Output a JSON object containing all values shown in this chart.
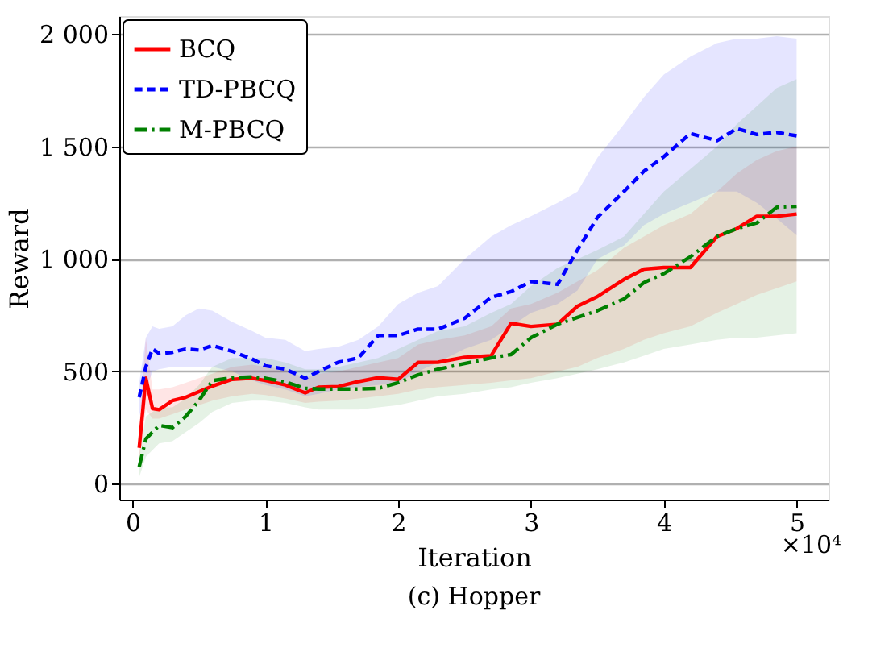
{
  "chart_data": {
    "type": "line",
    "xlabel": "Iteration",
    "ylabel": "Reward",
    "annotations": [
      "×10⁴",
      "(c) Hopper"
    ],
    "x": [
      0.05,
      0.1,
      0.15,
      0.2,
      0.3,
      0.4,
      0.5,
      0.6,
      0.75,
      0.9,
      1.0,
      1.15,
      1.3,
      1.4,
      1.55,
      1.7,
      1.85,
      2.0,
      2.15,
      2.3,
      2.5,
      2.7,
      2.85,
      3.0,
      3.2,
      3.35,
      3.5,
      3.7,
      3.85,
      4.0,
      4.2,
      4.4,
      4.55,
      4.7,
      4.85,
      5.0
    ],
    "series": [
      {
        "name": "BCQ",
        "color": "#ff0000",
        "line_style": "solid",
        "values": [
          160,
          470,
          335,
          330,
          370,
          385,
          410,
          435,
          465,
          470,
          460,
          440,
          405,
          430,
          433,
          455,
          472,
          465,
          540,
          541,
          563,
          570,
          714,
          700,
          710,
          790,
          833,
          909,
          955,
          962,
          962,
          1100,
          1135,
          1190,
          1190,
          1200
        ],
        "lower": [
          100,
          330,
          290,
          290,
          310,
          330,
          350,
          370,
          390,
          400,
          395,
          380,
          360,
          365,
          370,
          380,
          390,
          400,
          420,
          430,
          440,
          450,
          460,
          470,
          500,
          520,
          560,
          600,
          640,
          670,
          700,
          760,
          800,
          840,
          870,
          900
        ],
        "upper": [
          250,
          650,
          420,
          420,
          430,
          450,
          470,
          490,
          520,
          530,
          520,
          510,
          470,
          490,
          500,
          520,
          540,
          560,
          620,
          640,
          660,
          700,
          780,
          800,
          850,
          900,
          950,
          1050,
          1100,
          1150,
          1200,
          1300,
          1380,
          1440,
          1480,
          1500
        ]
      },
      {
        "name": "TD-PBCQ",
        "color": "#0000ff",
        "line_style": "dashed",
        "values": [
          385,
          520,
          600,
          580,
          585,
          600,
          595,
          615,
          590,
          555,
          525,
          510,
          470,
          500,
          541,
          560,
          660,
          660,
          688,
          688,
          736,
          830,
          855,
          900,
          887,
          1040,
          1185,
          1300,
          1390,
          1455,
          1558,
          1526,
          1580,
          1554,
          1563,
          1548
        ],
        "lower": [
          300,
          420,
          500,
          510,
          520,
          520,
          520,
          520,
          500,
          460,
          440,
          420,
          390,
          400,
          420,
          430,
          440,
          450,
          500,
          540,
          600,
          640,
          700,
          760,
          800,
          860,
          1000,
          1060,
          1150,
          1200,
          1250,
          1300,
          1300,
          1250,
          1180,
          1105
        ],
        "upper": [
          450,
          650,
          700,
          690,
          700,
          750,
          780,
          770,
          720,
          680,
          650,
          640,
          590,
          600,
          610,
          640,
          700,
          800,
          850,
          880,
          1000,
          1100,
          1150,
          1190,
          1250,
          1300,
          1450,
          1600,
          1720,
          1820,
          1900,
          1960,
          1980,
          1980,
          1990,
          1980
        ]
      },
      {
        "name": "M-PBCQ",
        "color": "#008000",
        "line_style": "dashdot",
        "values": [
          76,
          200,
          230,
          260,
          250,
          300,
          370,
          459,
          472,
          476,
          470,
          453,
          425,
          422,
          422,
          422,
          425,
          450,
          485,
          510,
          535,
          560,
          575,
          650,
          710,
          740,
          770,
          822,
          895,
          935,
          1010,
          1100,
          1135,
          1160,
          1230,
          1234
        ],
        "lower": [
          30,
          120,
          150,
          180,
          190,
          230,
          270,
          320,
          360,
          370,
          370,
          360,
          340,
          330,
          330,
          330,
          340,
          350,
          370,
          390,
          400,
          420,
          430,
          450,
          470,
          490,
          510,
          540,
          570,
          600,
          620,
          640,
          650,
          650,
          660,
          670
        ],
        "upper": [
          130,
          300,
          320,
          340,
          340,
          380,
          440,
          520,
          560,
          560,
          560,
          540,
          510,
          510,
          520,
          540,
          560,
          600,
          640,
          680,
          700,
          760,
          800,
          880,
          960,
          1000,
          1040,
          1100,
          1200,
          1300,
          1400,
          1500,
          1600,
          1680,
          1760,
          1800
        ]
      }
    ],
    "xlim": [
      -0.1,
      5.24
    ],
    "xticks": [
      {
        "value": 0,
        "label": "0"
      },
      {
        "value": 1,
        "label": "1"
      },
      {
        "value": 2,
        "label": "2"
      },
      {
        "value": 3,
        "label": "3"
      },
      {
        "value": 4,
        "label": "4"
      },
      {
        "value": 5,
        "label": "5"
      }
    ],
    "ylim": [
      -70,
      2080
    ],
    "yticks": [
      0,
      {
        "value": 500,
        "label": "500"
      },
      {
        "value": 1000,
        "label": "1 000"
      },
      {
        "value": 1500,
        "label": "1 500"
      },
      {
        "value": 2000,
        "label": "2 000"
      }
    ],
    "grid": "y",
    "legend": "top left"
  }
}
